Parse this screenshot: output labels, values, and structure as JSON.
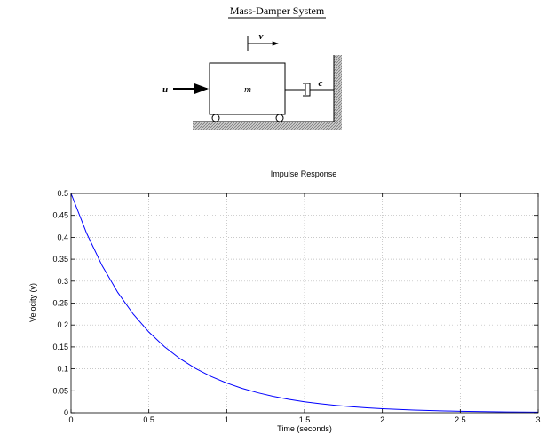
{
  "diagram": {
    "title": "Mass-Damper System",
    "velocity_symbol": "v",
    "input_symbol": "u",
    "mass_symbol": "m",
    "damper_symbol": "c"
  },
  "chart_data": {
    "type": "line",
    "title": "Impulse Response",
    "xlabel": "Time (seconds)",
    "ylabel": "Velocity (v)",
    "xlim": [
      0,
      3
    ],
    "ylim": [
      0,
      0.5
    ],
    "xticks": [
      0,
      0.5,
      1,
      1.5,
      2,
      2.5,
      3
    ],
    "xtick_labels": [
      "0",
      "0.5",
      "1",
      "1.5",
      "2",
      "2.5",
      "3"
    ],
    "yticks": [
      0,
      0.05,
      0.1,
      0.15,
      0.2,
      0.25,
      0.3,
      0.35,
      0.4,
      0.45,
      0.5
    ],
    "ytick_labels": [
      "0",
      "0.05",
      "0.1",
      "0.15",
      "0.2",
      "0.25",
      "0.3",
      "0.35",
      "0.4",
      "0.45",
      "0.5"
    ],
    "grid": true,
    "series": [
      {
        "color": "#0000ff",
        "x": [
          0,
          0.1,
          0.2,
          0.3,
          0.4,
          0.5,
          0.6,
          0.7,
          0.8,
          0.9,
          1.0,
          1.1,
          1.2,
          1.3,
          1.4,
          1.5,
          1.6,
          1.7,
          1.8,
          1.9,
          2.0,
          2.1,
          2.2,
          2.3,
          2.4,
          2.5,
          2.6,
          2.7,
          2.8,
          2.9,
          3.0
        ],
        "y": [
          0.5,
          0.4094,
          0.3352,
          0.2744,
          0.2247,
          0.1839,
          0.1506,
          0.1233,
          0.1009,
          0.0826,
          0.0677,
          0.0554,
          0.0454,
          0.0371,
          0.0304,
          0.0249,
          0.0204,
          0.0167,
          0.0137,
          0.0112,
          0.0092,
          0.0075,
          0.0061,
          0.005,
          0.0041,
          0.0034,
          0.0028,
          0.0023,
          0.0018,
          0.0015,
          0.0012
        ]
      }
    ]
  }
}
